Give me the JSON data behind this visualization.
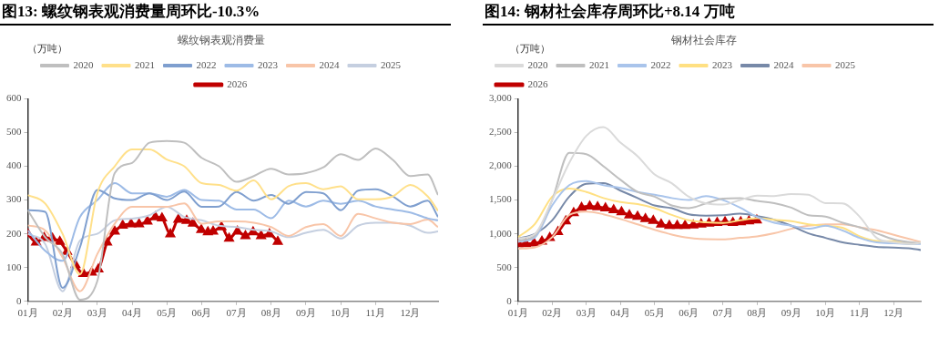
{
  "chart_data": [
    {
      "type": "line",
      "title": "图13:  螺纹钢表观消费量周环比-10.3%",
      "subtitle": "螺纹钢表观消费量",
      "ylabel": "（万吨）",
      "x": [
        1,
        1.5,
        2,
        2.5,
        3,
        3.5,
        4,
        4.5,
        5,
        5.5,
        6,
        6.5,
        7,
        7.5,
        8,
        8.5,
        9,
        9.5,
        10,
        10.5,
        11,
        11.5,
        12,
        12.5,
        12.8
      ],
      "xlim": [
        1,
        12.8
      ],
      "xticks": [
        {
          "value": 1,
          "label": "01月"
        },
        {
          "value": 2,
          "label": "02月"
        },
        {
          "value": 3,
          "label": "03月"
        },
        {
          "value": 4,
          "label": "04月"
        },
        {
          "value": 5,
          "label": "05月"
        },
        {
          "value": 6,
          "label": "06月"
        },
        {
          "value": 7,
          "label": "07月"
        },
        {
          "value": 8,
          "label": "08月"
        },
        {
          "value": 9,
          "label": "09月"
        },
        {
          "value": 10,
          "label": "10月"
        },
        {
          "value": 11,
          "label": "11月"
        },
        {
          "value": 12,
          "label": "12月"
        }
      ],
      "ylim": [
        0,
        600
      ],
      "yticks": [
        0,
        100,
        200,
        300,
        400,
        500,
        600
      ],
      "grid": false,
      "legend": "top",
      "line_style": "solid",
      "series": [
        {
          "name": "2020",
          "color": "#bfbfbf",
          "values": [
            270,
            190,
            140,
            5,
            60,
            380,
            410,
            470,
            475,
            470,
            425,
            400,
            354,
            371,
            393,
            376,
            380,
            397,
            436,
            419,
            453,
            419,
            371,
            376,
            315
          ]
        },
        {
          "name": "2021",
          "color": "#ffe08a",
          "values": [
            315,
            290,
            200,
            80,
            320,
            400,
            450,
            450,
            420,
            400,
            350,
            345,
            328,
            358,
            302,
            341,
            350,
            332,
            341,
            302,
            302,
            311,
            345,
            311,
            268
          ]
        },
        {
          "name": "2022",
          "color": "#7f9fcf",
          "values": [
            270,
            265,
            40,
            160,
            330,
            305,
            300,
            320,
            300,
            325,
            280,
            281,
            324,
            298,
            315,
            289,
            324,
            320,
            270,
            328,
            332,
            311,
            281,
            298,
            250
          ]
        },
        {
          "name": "2023",
          "color": "#9dbbe6",
          "values": [
            210,
            150,
            120,
            250,
            300,
            350,
            320,
            320,
            310,
            330,
            300,
            298,
            272,
            272,
            246,
            298,
            281,
            298,
            289,
            298,
            281,
            272,
            263,
            246,
            240
          ]
        },
        {
          "name": "2024",
          "color": "#f8c5a8",
          "values": [
            225,
            210,
            130,
            30,
            140,
            230,
            280,
            280,
            280,
            290,
            230,
            237,
            237,
            233,
            220,
            194,
            220,
            229,
            194,
            259,
            246,
            233,
            229,
            242,
            220
          ]
        },
        {
          "name": "2025",
          "color": "#c5cfe0",
          "values": [
            200,
            170,
            30,
            180,
            200,
            240,
            245,
            255,
            280,
            250,
            240,
            224,
            220,
            212,
            207,
            190,
            203,
            212,
            186,
            224,
            233,
            233,
            224,
            203,
            207
          ]
        },
        {
          "name": "2026",
          "color": "#c00000",
          "marker": "triangle",
          "x": [
            1,
            1.24,
            1.47,
            1.71,
            1.92,
            2.13,
            2.37,
            2.6,
            2.84,
            3.03,
            3.28,
            3.5,
            3.73,
            3.97,
            4.2,
            4.44,
            4.67,
            4.86,
            5.1,
            5.33,
            5.57,
            5.75,
            5.99,
            6.18,
            6.33,
            6.57,
            6.79,
            7.03,
            7.26,
            7.48,
            7.71,
            7.95,
            8.19
          ],
          "values": [
            200,
            175,
            188,
            186,
            177,
            147,
            108,
            82,
            86,
            95,
            175,
            207,
            225,
            229,
            229,
            237,
            250,
            246,
            199,
            242,
            239,
            231,
            212,
            205,
            207,
            220,
            186,
            207,
            194,
            205,
            194,
            199,
            177
          ]
        }
      ]
    },
    {
      "type": "line",
      "title": "图14:  钢材社会库存周环比+8.14 万吨",
      "subtitle": "钢材社会库存",
      "ylabel": "（万吨）",
      "x": [
        1,
        1.5,
        2,
        2.5,
        3,
        3.5,
        4,
        4.5,
        5,
        5.5,
        6,
        6.5,
        7,
        7.5,
        8,
        8.5,
        9,
        9.5,
        10,
        10.5,
        11,
        11.5,
        12,
        12.5,
        12.79
      ],
      "xlim": [
        1,
        12.79
      ],
      "xticks": [
        {
          "value": 1,
          "label": "01月"
        },
        {
          "value": 2,
          "label": "02月"
        },
        {
          "value": 3,
          "label": "03月"
        },
        {
          "value": 4,
          "label": "04月"
        },
        {
          "value": 5,
          "label": "05月"
        },
        {
          "value": 6,
          "label": "06月"
        },
        {
          "value": 7,
          "label": "07月"
        },
        {
          "value": 8,
          "label": "08月"
        },
        {
          "value": 9,
          "label": "09月"
        },
        {
          "value": 10,
          "label": "10月"
        },
        {
          "value": 11,
          "label": "11月"
        },
        {
          "value": 12,
          "label": "12月"
        }
      ],
      "ylim": [
        0,
        3000
      ],
      "yticks": [
        0,
        500,
        {
          "value": 1000,
          "label": "1,000"
        },
        {
          "value": 1500,
          "label": "1,500"
        },
        {
          "value": 2000,
          "label": "2,000"
        },
        {
          "value": 2500,
          "label": "2,500"
        },
        {
          "value": 3000,
          "label": "3,000"
        }
      ],
      "grid": false,
      "legend": "top left",
      "line_style": "solid",
      "series": [
        {
          "name": "2020",
          "color": "#dadada",
          "values": [
            930,
            1000,
            1500,
            2050,
            2450,
            2580,
            2350,
            2150,
            1880,
            1750,
            1550,
            1450,
            1433,
            1500,
            1567,
            1560,
            1590,
            1580,
            1455,
            1450,
            1254,
            940,
            873,
            850,
            870
          ]
        },
        {
          "name": "2021",
          "color": "#bfbfbf",
          "values": [
            900,
            980,
            1500,
            2200,
            2180,
            2000,
            1800,
            1620,
            1550,
            1420,
            1380,
            1450,
            1522,
            1530,
            1487,
            1455,
            1388,
            1276,
            1254,
            1164,
            1097,
            1008,
            918,
            873,
            865
          ]
        },
        {
          "name": "2022",
          "color": "#a9c4eb",
          "values": [
            880,
            950,
            1420,
            1720,
            1780,
            1720,
            1680,
            1620,
            1580,
            1530,
            1500,
            1560,
            1500,
            1388,
            1250,
            1164,
            1120,
            1075,
            1120,
            1050,
            940,
            873,
            860,
            850,
            850
          ]
        },
        {
          "name": "2023",
          "color": "#ffe082",
          "values": [
            950,
            1150,
            1550,
            1670,
            1620,
            1530,
            1470,
            1440,
            1380,
            1280,
            1200,
            1170,
            1160,
            1200,
            1232,
            1209,
            1187,
            1142,
            1120,
            1090,
            963,
            896,
            890,
            850,
            870
          ]
        },
        {
          "name": "2024",
          "color": "#7789a8",
          "values": [
            930,
            1000,
            1200,
            1550,
            1740,
            1750,
            1640,
            1530,
            1420,
            1380,
            1290,
            1270,
            1276,
            1299,
            1263,
            1209,
            1120,
            1008,
            940,
            873,
            837,
            806,
            797,
            784,
            760
          ]
        },
        {
          "name": "2025",
          "color": "#f8c5a8",
          "values": [
            780,
            800,
            950,
            1280,
            1330,
            1290,
            1220,
            1140,
            1060,
            990,
            940,
            920,
            918,
            940,
            963,
            1008,
            1075,
            1120,
            1142,
            1142,
            1097,
            1052,
            985,
            918,
            880
          ]
        },
        {
          "name": "2026",
          "color": "#c00000",
          "marker": "triangle",
          "x": [
            1,
            1.23,
            1.47,
            1.7,
            1.93,
            2.17,
            2.4,
            2.63,
            2.86,
            3.1,
            3.33,
            3.56,
            3.8,
            4.03,
            4.26,
            4.5,
            4.73,
            4.96,
            5.19,
            5.43,
            5.66,
            5.89,
            6.13,
            6.36,
            6.59,
            6.83,
            7.06,
            7.29,
            7.52,
            7.76,
            7.99
          ],
          "values": [
            850,
            850,
            860,
            887,
            940,
            1030,
            1187,
            1308,
            1388,
            1406,
            1397,
            1379,
            1352,
            1321,
            1276,
            1254,
            1223,
            1196,
            1142,
            1120,
            1120,
            1120,
            1128,
            1142,
            1155,
            1164,
            1173,
            1164,
            1173,
            1187,
            1200
          ]
        }
      ]
    }
  ]
}
